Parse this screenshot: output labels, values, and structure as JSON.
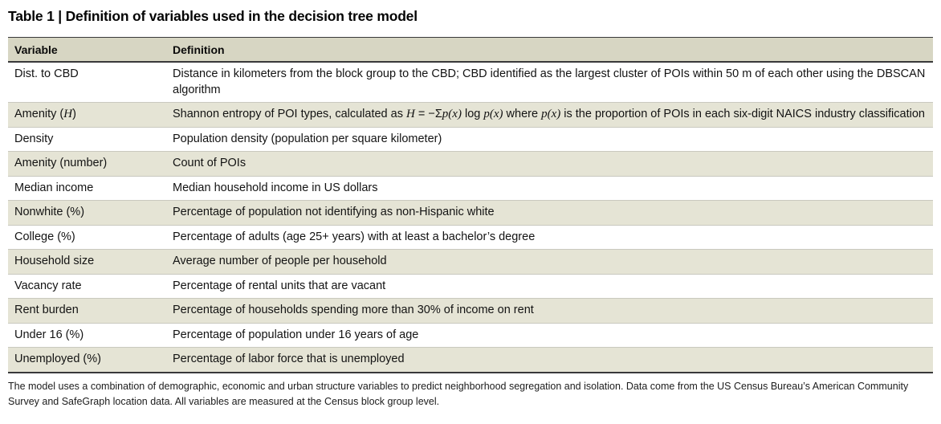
{
  "title": "Table 1 | Definition of variables used in the decision tree model",
  "colors": {
    "header_bg": "#d7d6c3",
    "stripe_bg": "#e5e4d5",
    "rule": "#39393a",
    "row_divider": "#c9c9bf"
  },
  "table": {
    "headers": [
      "Variable",
      "Definition"
    ],
    "rows": [
      {
        "shaded": false,
        "variable": "Dist. to CBD",
        "definition": "Distance in kilometers from the block group to the CBD; CBD identified as the largest cluster of POIs within 50 m of each other using the DBSCAN algorithm"
      },
      {
        "shaded": true,
        "variable": [
          {
            "t": "Amenity ("
          },
          {
            "t": "H",
            "i": true
          },
          {
            "t": ")"
          }
        ],
        "definition": [
          {
            "t": "Shannon entropy of POI types, calculated as "
          },
          {
            "t": "H",
            "i": true
          },
          {
            "t": " = −Σ"
          },
          {
            "t": "p(x)",
            "i": true
          },
          {
            "t": " log "
          },
          {
            "t": "p(x)",
            "i": true
          },
          {
            "t": " where "
          },
          {
            "t": "p(x)",
            "i": true
          },
          {
            "t": " is the proportion of POIs in each six-digit NAICS industry classification"
          }
        ]
      },
      {
        "shaded": false,
        "variable": "Density",
        "definition": "Population density (population per square kilometer)"
      },
      {
        "shaded": true,
        "variable": "Amenity (number)",
        "definition": "Count of POIs"
      },
      {
        "shaded": false,
        "variable": "Median income",
        "definition": "Median household income in US dollars"
      },
      {
        "shaded": true,
        "variable": "Nonwhite (%)",
        "definition": "Percentage of population not identifying as non-Hispanic white"
      },
      {
        "shaded": false,
        "variable": "College (%)",
        "definition": "Percentage of adults (age 25+ years) with at least a bachelor’s degree"
      },
      {
        "shaded": true,
        "variable": "Household size",
        "definition": "Average number of people per household"
      },
      {
        "shaded": false,
        "variable": "Vacancy rate",
        "definition": "Percentage of rental units that are vacant"
      },
      {
        "shaded": true,
        "variable": "Rent burden",
        "definition": "Percentage of households spending more than 30% of income on rent"
      },
      {
        "shaded": false,
        "variable": "Under 16 (%)",
        "definition": "Percentage of population under 16 years of age"
      },
      {
        "shaded": true,
        "variable": "Unemployed (%)",
        "definition": "Percentage of labor force that is unemployed"
      }
    ]
  },
  "footnote": "The model uses a combination of demographic, economic and urban structure variables to predict neighborhood segregation and isolation. Data come from the US Census Bureau’s American Community Survey and SafeGraph location data. All variables are measured at the Census block group level."
}
